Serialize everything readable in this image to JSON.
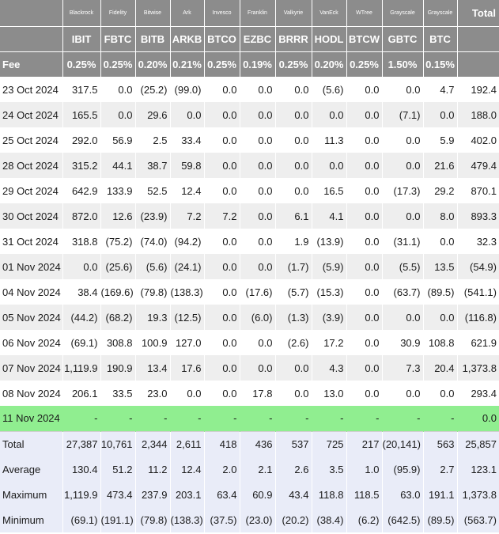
{
  "columns": [
    {
      "issuer": "Blackrock",
      "ticker": "IBIT",
      "fee": "0.25%"
    },
    {
      "issuer": "Fidelity",
      "ticker": "FBTC",
      "fee": "0.25%"
    },
    {
      "issuer": "Bitwise",
      "ticker": "BITB",
      "fee": "0.20%"
    },
    {
      "issuer": "Ark",
      "ticker": "ARKB",
      "fee": "0.21%"
    },
    {
      "issuer": "Invesco",
      "ticker": "BTCO",
      "fee": "0.25%"
    },
    {
      "issuer": "Franklin",
      "ticker": "EZBC",
      "fee": "0.19%"
    },
    {
      "issuer": "Valkyrie",
      "ticker": "BRRR",
      "fee": "0.25%"
    },
    {
      "issuer": "VanEck",
      "ticker": "HODL",
      "fee": "0.20%"
    },
    {
      "issuer": "WTree",
      "ticker": "BTCW",
      "fee": "0.25%"
    },
    {
      "issuer": "Grayscale",
      "ticker": "GBTC",
      "fee": "1.50%"
    },
    {
      "issuer": "Grayscale",
      "ticker": "BTC",
      "fee": "0.15%"
    }
  ],
  "total_header": "Total",
  "fee_label": "Fee",
  "rows": [
    {
      "date": "23 Oct 2024",
      "values": [
        "317.5",
        "0.0",
        "(25.2)",
        "(99.0)",
        "0.0",
        "0.0",
        "0.0",
        "(5.6)",
        "0.0",
        "0.0",
        "4.7"
      ],
      "total": "192.4"
    },
    {
      "date": "24 Oct 2024",
      "values": [
        "165.5",
        "0.0",
        "29.6",
        "0.0",
        "0.0",
        "0.0",
        "0.0",
        "0.0",
        "0.0",
        "(7.1)",
        "0.0"
      ],
      "total": "188.0"
    },
    {
      "date": "25 Oct 2024",
      "values": [
        "292.0",
        "56.9",
        "2.5",
        "33.4",
        "0.0",
        "0.0",
        "0.0",
        "11.3",
        "0.0",
        "0.0",
        "5.9"
      ],
      "total": "402.0"
    },
    {
      "date": "28 Oct 2024",
      "values": [
        "315.2",
        "44.1",
        "38.7",
        "59.8",
        "0.0",
        "0.0",
        "0.0",
        "0.0",
        "0.0",
        "0.0",
        "21.6"
      ],
      "total": "479.4"
    },
    {
      "date": "29 Oct 2024",
      "values": [
        "642.9",
        "133.9",
        "52.5",
        "12.4",
        "0.0",
        "0.0",
        "0.0",
        "16.5",
        "0.0",
        "(17.3)",
        "29.2"
      ],
      "total": "870.1"
    },
    {
      "date": "30 Oct 2024",
      "values": [
        "872.0",
        "12.6",
        "(23.9)",
        "7.2",
        "7.2",
        "0.0",
        "6.1",
        "4.1",
        "0.0",
        "0.0",
        "8.0"
      ],
      "total": "893.3"
    },
    {
      "date": "31 Oct 2024",
      "values": [
        "318.8",
        "(75.2)",
        "(74.0)",
        "(94.2)",
        "0.0",
        "0.0",
        "1.9",
        "(13.9)",
        "0.0",
        "(31.1)",
        "0.0"
      ],
      "total": "32.3"
    },
    {
      "date": "01 Nov 2024",
      "values": [
        "0.0",
        "(25.6)",
        "(5.6)",
        "(24.1)",
        "0.0",
        "0.0",
        "(1.7)",
        "(5.9)",
        "0.0",
        "(5.5)",
        "13.5"
      ],
      "total": "(54.9)"
    },
    {
      "date": "04 Nov 2024",
      "values": [
        "38.4",
        "(169.6)",
        "(79.8)",
        "(138.3)",
        "0.0",
        "(17.6)",
        "(5.7)",
        "(15.3)",
        "0.0",
        "(63.7)",
        "(89.5)"
      ],
      "total": "(541.1)"
    },
    {
      "date": "05 Nov 2024",
      "values": [
        "(44.2)",
        "(68.2)",
        "19.3",
        "(12.5)",
        "0.0",
        "(6.0)",
        "(1.3)",
        "(3.9)",
        "0.0",
        "0.0",
        "0.0"
      ],
      "total": "(116.8)"
    },
    {
      "date": "06 Nov 2024",
      "values": [
        "(69.1)",
        "308.8",
        "100.9",
        "127.0",
        "0.0",
        "0.0",
        "(2.6)",
        "17.2",
        "0.0",
        "30.9",
        "108.8"
      ],
      "total": "621.9"
    },
    {
      "date": "07 Nov 2024",
      "values": [
        "1,119.9",
        "190.9",
        "13.4",
        "17.6",
        "0.0",
        "0.0",
        "0.0",
        "4.3",
        "0.0",
        "7.3",
        "20.4"
      ],
      "total": "1,373.8"
    },
    {
      "date": "08 Nov 2024",
      "values": [
        "206.1",
        "33.5",
        "23.0",
        "0.0",
        "0.0",
        "17.8",
        "0.0",
        "13.0",
        "0.0",
        "0.0",
        "0.0"
      ],
      "total": "293.4"
    },
    {
      "date": "11 Nov 2024",
      "values": [
        "-",
        "-",
        "-",
        "-",
        "-",
        "-",
        "-",
        "-",
        "-",
        "-",
        "-"
      ],
      "total": "0.0",
      "pending": true
    }
  ],
  "summary": [
    {
      "label": "Total",
      "values": [
        "27,387",
        "10,761",
        "2,344",
        "2,611",
        "418",
        "436",
        "537",
        "725",
        "217",
        "(20,141)",
        "563"
      ],
      "total": "25,857"
    },
    {
      "label": "Average",
      "values": [
        "130.4",
        "51.2",
        "11.2",
        "12.4",
        "2.0",
        "2.1",
        "2.6",
        "3.5",
        "1.0",
        "(95.9)",
        "2.7"
      ],
      "total": "123.1"
    },
    {
      "label": "Maximum",
      "values": [
        "1,119.9",
        "473.4",
        "237.9",
        "203.1",
        "63.4",
        "60.9",
        "43.4",
        "118.8",
        "118.5",
        "63.0",
        "191.1"
      ],
      "total": "1,373.8"
    },
    {
      "label": "Minimum",
      "values": [
        "(69.1)",
        "(191.1)",
        "(79.8)",
        "(138.3)",
        "(37.5)",
        "(23.0)",
        "(20.2)",
        "(38.4)",
        "(6.2)",
        "(642.5)",
        "(89.5)"
      ],
      "total": "(563.7)"
    }
  ],
  "colors": {
    "header_bg": "#8c8c8c",
    "negative": "#e0403a",
    "pending_row": "#90ee90",
    "summary_bg": "#e9ecf8",
    "alt_row": "#eeeeee"
  }
}
